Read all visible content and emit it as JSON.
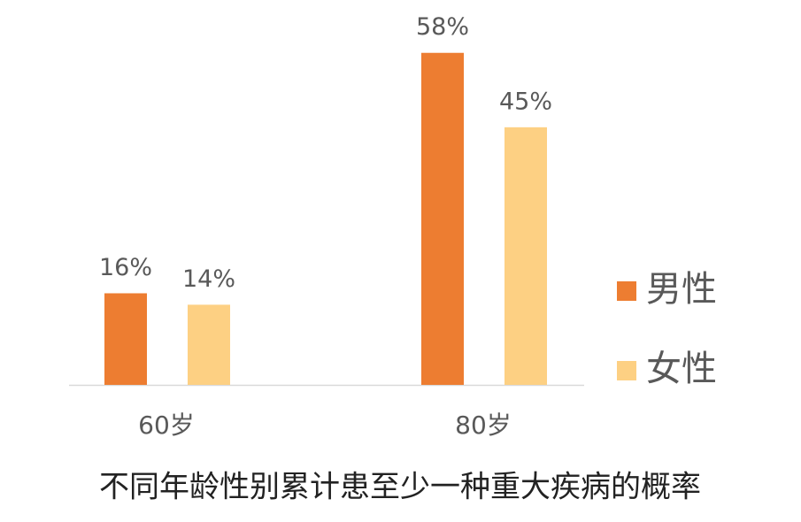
{
  "chart_data": {
    "type": "bar",
    "title": "不同年龄性别累计患至少一种重大疾病的概率",
    "categories": [
      "60岁",
      "80岁"
    ],
    "series": [
      {
        "name": "男性",
        "color": "#ed7d31",
        "values": [
          16,
          58
        ],
        "value_labels": [
          "16%",
          "58%"
        ]
      },
      {
        "name": "女性",
        "color": "#fdd083",
        "values": [
          14,
          45
        ],
        "value_labels": [
          "14%",
          "45%"
        ]
      }
    ],
    "legend": "right"
  }
}
